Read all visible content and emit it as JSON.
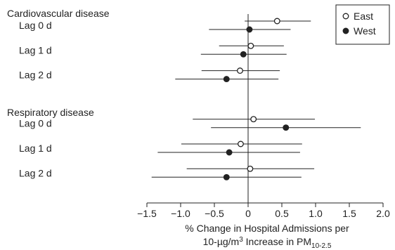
{
  "chart_data": {
    "type": "scatter",
    "subtype": "forest-plot",
    "title": "",
    "xlabel_line1": "% Change in Hospital Admissions per",
    "xlabel_line2_main": "10-µg/m",
    "xlabel_line2_sup": "3",
    "xlabel_line2_mid": " Increase in PM",
    "xlabel_line2_sub": "10-2.5",
    "xlim": [
      -1.5,
      2.0
    ],
    "xticks": [
      -1.5,
      -1.0,
      -0.5,
      0,
      0.5,
      1.0,
      1.5,
      2.0
    ],
    "xtick_labels": [
      "−1.5",
      "−1.0",
      "−0.5",
      "0",
      "0.5",
      "1.0",
      "1.5",
      "2.0"
    ],
    "reference_line": 0,
    "legend_position": "top-right",
    "series": [
      {
        "name": "East",
        "marker": "open-circle"
      },
      {
        "name": "West",
        "marker": "filled-circle"
      }
    ],
    "groups": [
      {
        "label": "Cardiovascular disease",
        "rows": [
          {
            "label": "Lag 0 d",
            "East": {
              "estimate": 0.43,
              "lower": -0.05,
              "upper": 0.93
            },
            "West": {
              "estimate": 0.02,
              "lower": -0.58,
              "upper": 0.63
            }
          },
          {
            "label": "Lag 1 d",
            "East": {
              "estimate": 0.04,
              "lower": -0.43,
              "upper": 0.53
            },
            "West": {
              "estimate": -0.07,
              "lower": -0.7,
              "upper": 0.57
            }
          },
          {
            "label": "Lag 2 d",
            "East": {
              "estimate": -0.12,
              "lower": -0.69,
              "upper": 0.47
            },
            "West": {
              "estimate": -0.32,
              "lower": -1.08,
              "upper": 0.45
            }
          }
        ]
      },
      {
        "label": "Respiratory disease",
        "rows": [
          {
            "label": "Lag 0 d",
            "East": {
              "estimate": 0.08,
              "lower": -0.82,
              "upper": 0.99
            },
            "West": {
              "estimate": 0.56,
              "lower": -0.55,
              "upper": 1.67
            }
          },
          {
            "label": "Lag 1 d",
            "East": {
              "estimate": -0.11,
              "lower": -0.99,
              "upper": 0.8
            },
            "West": {
              "estimate": -0.28,
              "lower": -1.34,
              "upper": 0.77
            }
          },
          {
            "label": "Lag 2 d",
            "East": {
              "estimate": 0.03,
              "lower": -0.91,
              "upper": 0.98
            },
            "West": {
              "estimate": -0.32,
              "lower": -1.43,
              "upper": 0.79
            }
          }
        ]
      }
    ]
  }
}
